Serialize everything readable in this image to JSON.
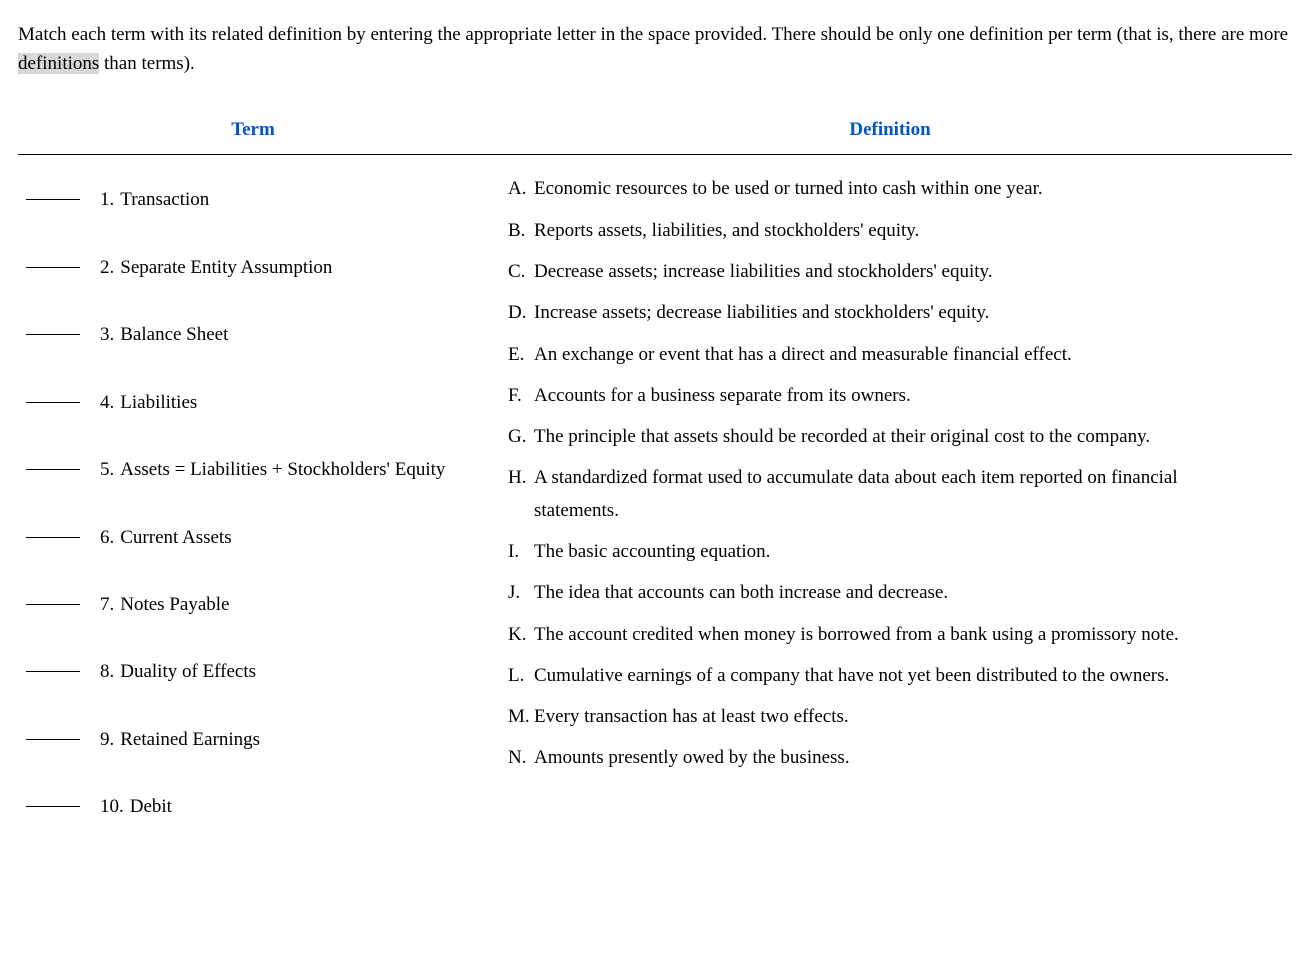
{
  "colors": {
    "header_text": "#0055cc",
    "body_text": "#000000",
    "background": "#ffffff",
    "highlight": "#d8d8d8",
    "border": "#000000"
  },
  "instructions": {
    "pre": "Match each term with its related definition by entering the appropriate letter in the space provided. There should be only one definition per term (that is, there are more ",
    "highlighted": "definitions",
    "post": " than terms)."
  },
  "headers": {
    "term": "Term",
    "definition": "Definition"
  },
  "terms": [
    {
      "num": "1.",
      "text": "Transaction"
    },
    {
      "num": "2.",
      "text": "Separate Entity Assumption"
    },
    {
      "num": "3.",
      "text": "Balance Sheet"
    },
    {
      "num": "4.",
      "text": "Liabilities"
    },
    {
      "num": "5.",
      "text": "Assets = Liabilities + Stockholders' Equity"
    },
    {
      "num": "6.",
      "text": "Current Assets"
    },
    {
      "num": "7.",
      "text": "Notes Payable"
    },
    {
      "num": "8.",
      "text": "Duality of Effects"
    },
    {
      "num": "9.",
      "text": "Retained Earnings"
    },
    {
      "num": "10.",
      "text": "Debit"
    }
  ],
  "definitions": [
    {
      "letter": "A.",
      "text": "Economic resources to be used or turned into cash within one year."
    },
    {
      "letter": "B.",
      "text": "Reports assets, liabilities, and stockholders' equity."
    },
    {
      "letter": "C.",
      "text": "Decrease assets; increase liabilities and stockholders' equity."
    },
    {
      "letter": "D.",
      "text": "Increase assets; decrease liabilities and stockholders' equity."
    },
    {
      "letter": "E.",
      "text": "An exchange or event that has a direct and measurable financial effect."
    },
    {
      "letter": "F.",
      "text": "Accounts for a business separate from its owners."
    },
    {
      "letter": "G.",
      "text": "The principle that assets should be recorded at their original cost to the company."
    },
    {
      "letter": "H.",
      "text": "A standardized format used to accumulate data about each item reported on financial statements."
    },
    {
      "letter": "I.",
      "text": "The basic accounting equation."
    },
    {
      "letter": "J.",
      "text": "The idea that accounts can both increase and decrease."
    },
    {
      "letter": "K.",
      "text": "The account credited when money is borrowed from a bank using a promissory note."
    },
    {
      "letter": "L.",
      "text": "Cumulative earnings of a company that have not yet been distributed to the owners."
    },
    {
      "letter": "M.",
      "text": "Every transaction has at least two effects."
    },
    {
      "letter": "N.",
      "text": "Amounts presently owed by the business."
    }
  ]
}
